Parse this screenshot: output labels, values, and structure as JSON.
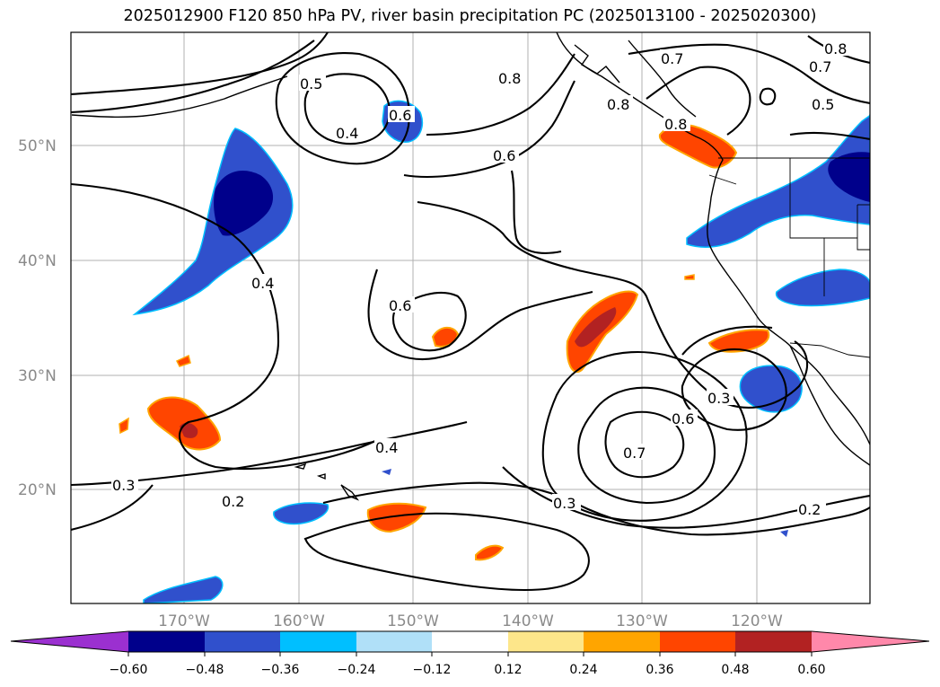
{
  "title": "2025012900 F120 850 hPa PV, river basin precipitation PC (2025013100 - 2025020300)",
  "map": {
    "lat_labels": [
      "50°N",
      "40°N",
      "30°N",
      "20°N"
    ],
    "lon_labels": [
      "170°W",
      "160°W",
      "150°W",
      "140°W",
      "130°W",
      "120°W"
    ],
    "grid": true
  },
  "contour_labels": [
    "0.5",
    "0.4",
    "0.6",
    "0.8",
    "0.6",
    "0.7",
    "0.8",
    "0.7",
    "0.8",
    "0.5",
    "0.8",
    "0.4",
    "0.6",
    "0.3",
    "0.6",
    "0.7",
    "0.4",
    "0.3",
    "0.2",
    "0.3",
    "0.2"
  ],
  "colorbar": {
    "tick_labels": [
      "−0.60",
      "−0.48",
      "−0.36",
      "−0.24",
      "−0.12",
      "0.12",
      "0.24",
      "0.36",
      "0.48",
      "0.60"
    ],
    "colors": [
      "#9b30d0",
      "#00008b",
      "#3050cc",
      "#00bfff",
      "#b0e0f8",
      "#ffffff",
      "#fde68a",
      "#ffa500",
      "#ff4500",
      "#b22222",
      "#ff88aa"
    ]
  }
}
